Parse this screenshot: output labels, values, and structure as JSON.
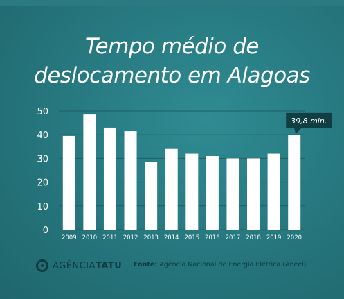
{
  "title_line1": "Tempo médio de",
  "title_line2": "deslocamento em Alagoas",
  "brand": {
    "name_part1": "AGÊNCIA",
    "name_part2": "TATU"
  },
  "source": {
    "label": "Fonte:",
    "text": "Agência Nacional de Energia Elétrica (Aneel)"
  },
  "colors": {
    "background": "#2a7d84",
    "bar": "#ffffff",
    "callout": "#103e43",
    "text": "#ffffff",
    "footer": "#0f3b40"
  },
  "chart_data": {
    "type": "bar",
    "categories": [
      "2009",
      "2010",
      "2011",
      "2012",
      "2013",
      "2014",
      "2015",
      "2016",
      "2017",
      "2018",
      "2019",
      "2020"
    ],
    "values": [
      39.5,
      48.5,
      43,
      41.5,
      28.5,
      34,
      32,
      31,
      30,
      30,
      32,
      39.8
    ],
    "yticks": [
      0,
      10,
      20,
      30,
      40,
      50
    ],
    "ylim": [
      0,
      50
    ],
    "grid": true,
    "annotation": {
      "category": "2020",
      "text": "39,8 min."
    }
  }
}
